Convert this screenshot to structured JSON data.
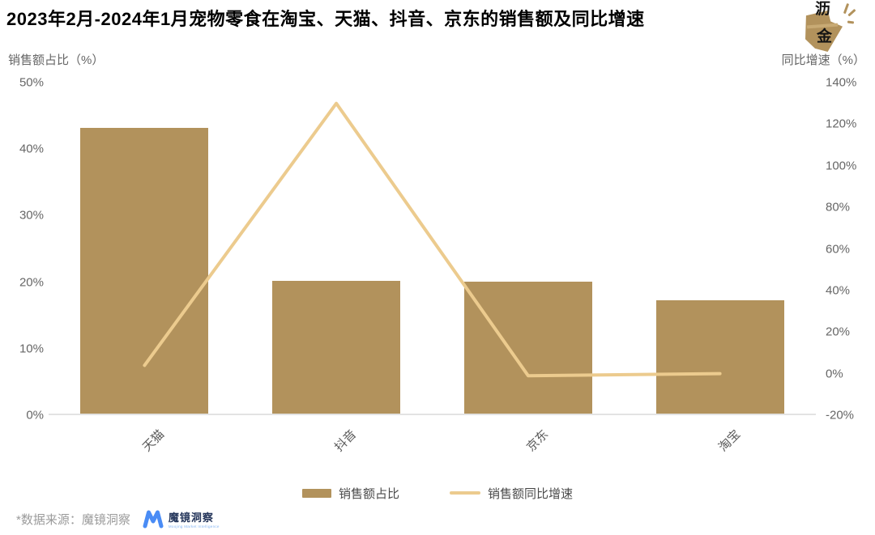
{
  "title": "2023年2月-2024年1月宠物零食在淘宝、天猫、抖音、京东的销售额及同比增速",
  "lijin_logo": {
    "char1": "沥",
    "char2": "金"
  },
  "axes": {
    "left_title": "销售额占比（%）",
    "right_title": "同比增速（%）",
    "left_ticks": [
      "50%",
      "40%",
      "30%",
      "20%",
      "10%",
      "0%"
    ],
    "right_ticks": [
      "140%",
      "120%",
      "100%",
      "80%",
      "60%",
      "40%",
      "20%",
      "0%",
      "-20%"
    ]
  },
  "legend": {
    "items": [
      {
        "label": "销售额占比",
        "type": "bar"
      },
      {
        "label": "销售额同比增速",
        "type": "line"
      }
    ]
  },
  "footer": {
    "source": "*数据来源：魔镜洞察",
    "logo_text": "魔镜洞察",
    "logo_sub": "Moojing Market Intelligence"
  },
  "colors": {
    "bar": "#b2925c",
    "line": "#eccb8e",
    "axis_text": "#666666",
    "x_label_text": "#595959",
    "baseline": "#e3e3e3",
    "legend_text": "#4a4a4a",
    "footer_text": "#9b9b9b",
    "lijin_gold": "#b2925c",
    "moojing_blue": "#4a8cf5",
    "moojing_navy": "#25365b"
  },
  "chart_data": {
    "type": "bar+line combo",
    "title": "2023年2月-2024年1月宠物零食在淘宝、天猫、抖音、京东的销售额及同比增速",
    "categories": [
      "天猫",
      "抖音",
      "京东",
      "淘宝"
    ],
    "series": [
      {
        "name": "销售额占比",
        "type": "bar",
        "axis": "left",
        "unit": "%",
        "values": [
          43,
          20,
          19.8,
          17
        ]
      },
      {
        "name": "销售额同比增速",
        "type": "line",
        "axis": "right",
        "unit": "%",
        "values": [
          4,
          130,
          -1,
          0
        ]
      }
    ],
    "left_axis": {
      "label": "销售额占比（%）",
      "range": [
        0,
        50
      ],
      "tick_step": 10
    },
    "right_axis": {
      "label": "同比增速（%）",
      "range": [
        -20,
        140
      ],
      "tick_step": 20
    },
    "grid": false,
    "legend_position": "bottom",
    "x_label_rotation": -45
  }
}
